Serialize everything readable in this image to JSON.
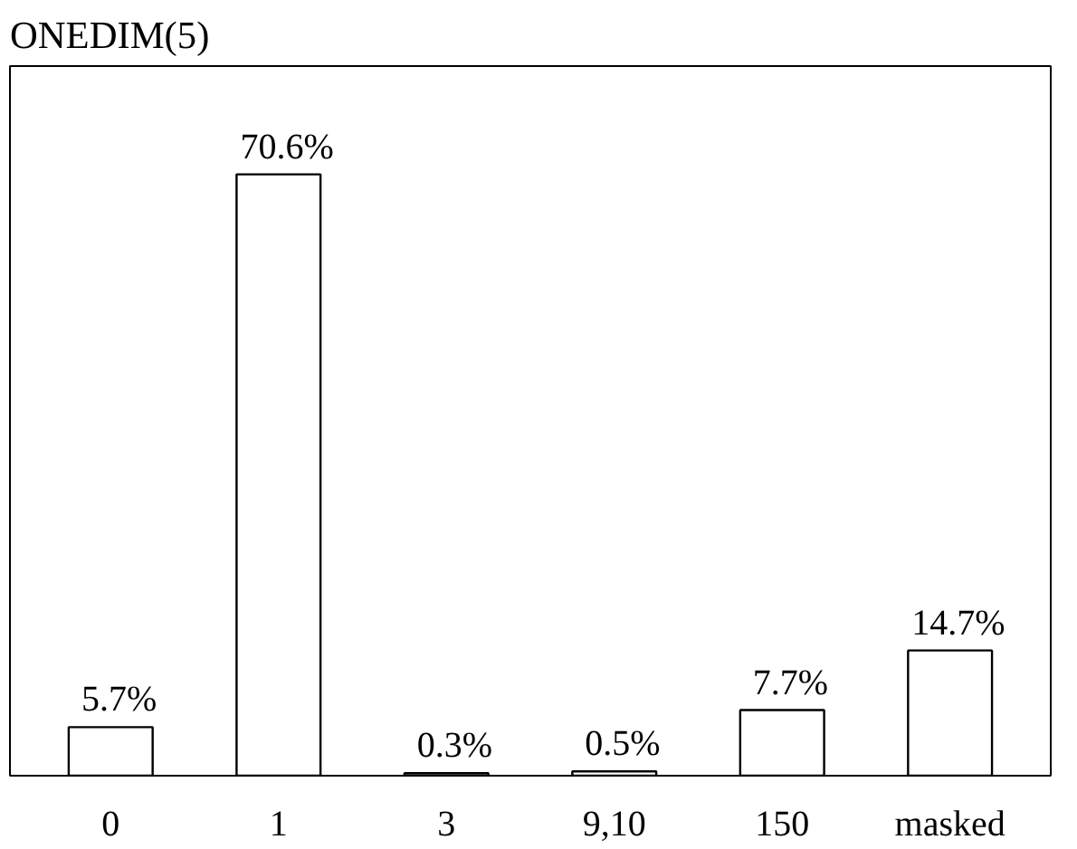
{
  "chart_data": {
    "type": "bar",
    "title": "ONEDIM(5)",
    "categories": [
      "0",
      "1",
      "3",
      "9,10",
      "150",
      "masked"
    ],
    "values": [
      5.7,
      70.6,
      0.3,
      0.5,
      7.7,
      14.7
    ],
    "value_labels": [
      "5.7%",
      "70.6%",
      "0.3%",
      "0.5%",
      "7.7%",
      "14.7%"
    ],
    "color": "#ffffff",
    "grid": false
  }
}
